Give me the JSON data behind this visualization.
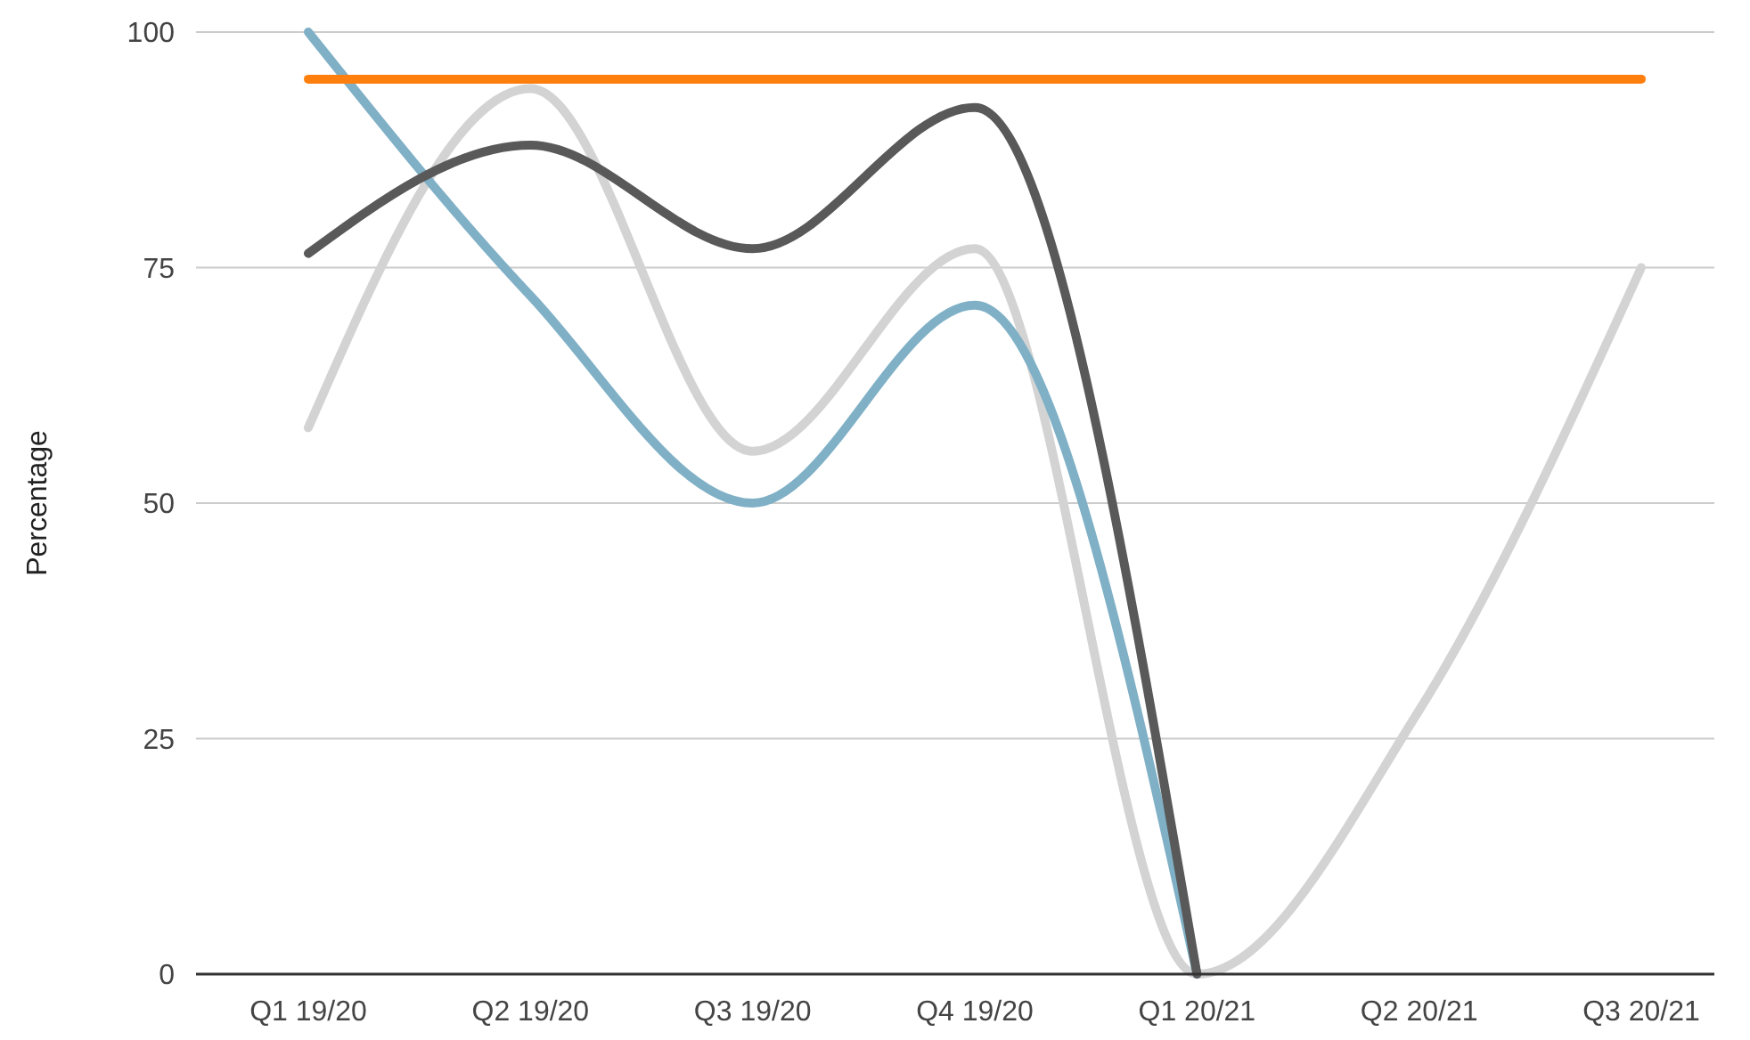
{
  "chart_data": {
    "type": "line",
    "ylabel": "Percentage",
    "categories": [
      "Q1 19/20",
      "Q2 19/20",
      "Q3 19/20",
      "Q4 19/20",
      "Q1 20/21",
      "Q2 20/21",
      "Q3 20/21"
    ],
    "series": [
      {
        "color": "#d3d3d3",
        "values": [
          58,
          94,
          55.5,
          77,
          0,
          28,
          75
        ]
      },
      {
        "color": "#7fb0c6",
        "values": [
          100,
          72,
          50,
          71,
          0,
          null,
          null
        ]
      },
      {
        "color": "#595959",
        "values": [
          76.5,
          88,
          77,
          92,
          0,
          null,
          null
        ]
      },
      {
        "color": "#ff7f0e",
        "values": [
          95,
          95,
          95,
          95,
          95,
          95,
          95
        ]
      }
    ],
    "ylim": [
      0,
      100
    ],
    "yticks": [
      0,
      25,
      50,
      75,
      100
    ],
    "grid": "y"
  }
}
